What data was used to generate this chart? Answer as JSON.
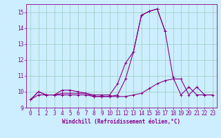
{
  "hours": [
    0,
    1,
    2,
    3,
    4,
    5,
    6,
    7,
    8,
    9,
    10,
    11,
    12,
    13,
    14,
    15,
    16,
    17,
    18,
    19,
    20,
    21,
    22,
    23
  ],
  "line1": [
    9.5,
    10.0,
    9.8,
    9.8,
    10.1,
    10.1,
    10.0,
    9.9,
    9.8,
    9.8,
    9.8,
    10.5,
    11.8,
    12.5,
    14.8,
    15.05,
    15.2,
    13.8,
    10.9,
    9.8,
    10.3,
    9.8,
    9.8,
    9.8
  ],
  "line2": [
    9.5,
    10.0,
    9.8,
    9.8,
    9.9,
    9.9,
    9.9,
    9.9,
    9.7,
    9.7,
    9.7,
    9.8,
    10.8,
    12.5,
    14.8,
    15.05,
    15.2,
    13.8,
    null,
    null,
    null,
    null,
    null,
    null
  ],
  "line3": [
    9.5,
    9.8,
    9.8,
    9.8,
    9.8,
    9.8,
    9.8,
    9.8,
    9.7,
    9.7,
    9.7,
    9.7,
    9.7,
    9.8,
    9.9,
    10.2,
    10.5,
    10.7,
    10.8,
    10.8,
    9.8,
    10.3,
    9.8,
    9.8
  ],
  "line_color": "#880088",
  "bg_color": "#cceeff",
  "grid_color": "#99ccbb",
  "xlabel": "Windchill (Refroidissement éolien,°C)",
  "ylim": [
    9,
    15.5
  ],
  "xlim": [
    -0.5,
    23.5
  ],
  "yticks": [
    9,
    10,
    11,
    12,
    13,
    14,
    15
  ],
  "xticks": [
    0,
    1,
    2,
    3,
    4,
    5,
    6,
    7,
    8,
    9,
    10,
    11,
    12,
    13,
    14,
    15,
    16,
    17,
    18,
    19,
    20,
    21,
    22,
    23
  ]
}
